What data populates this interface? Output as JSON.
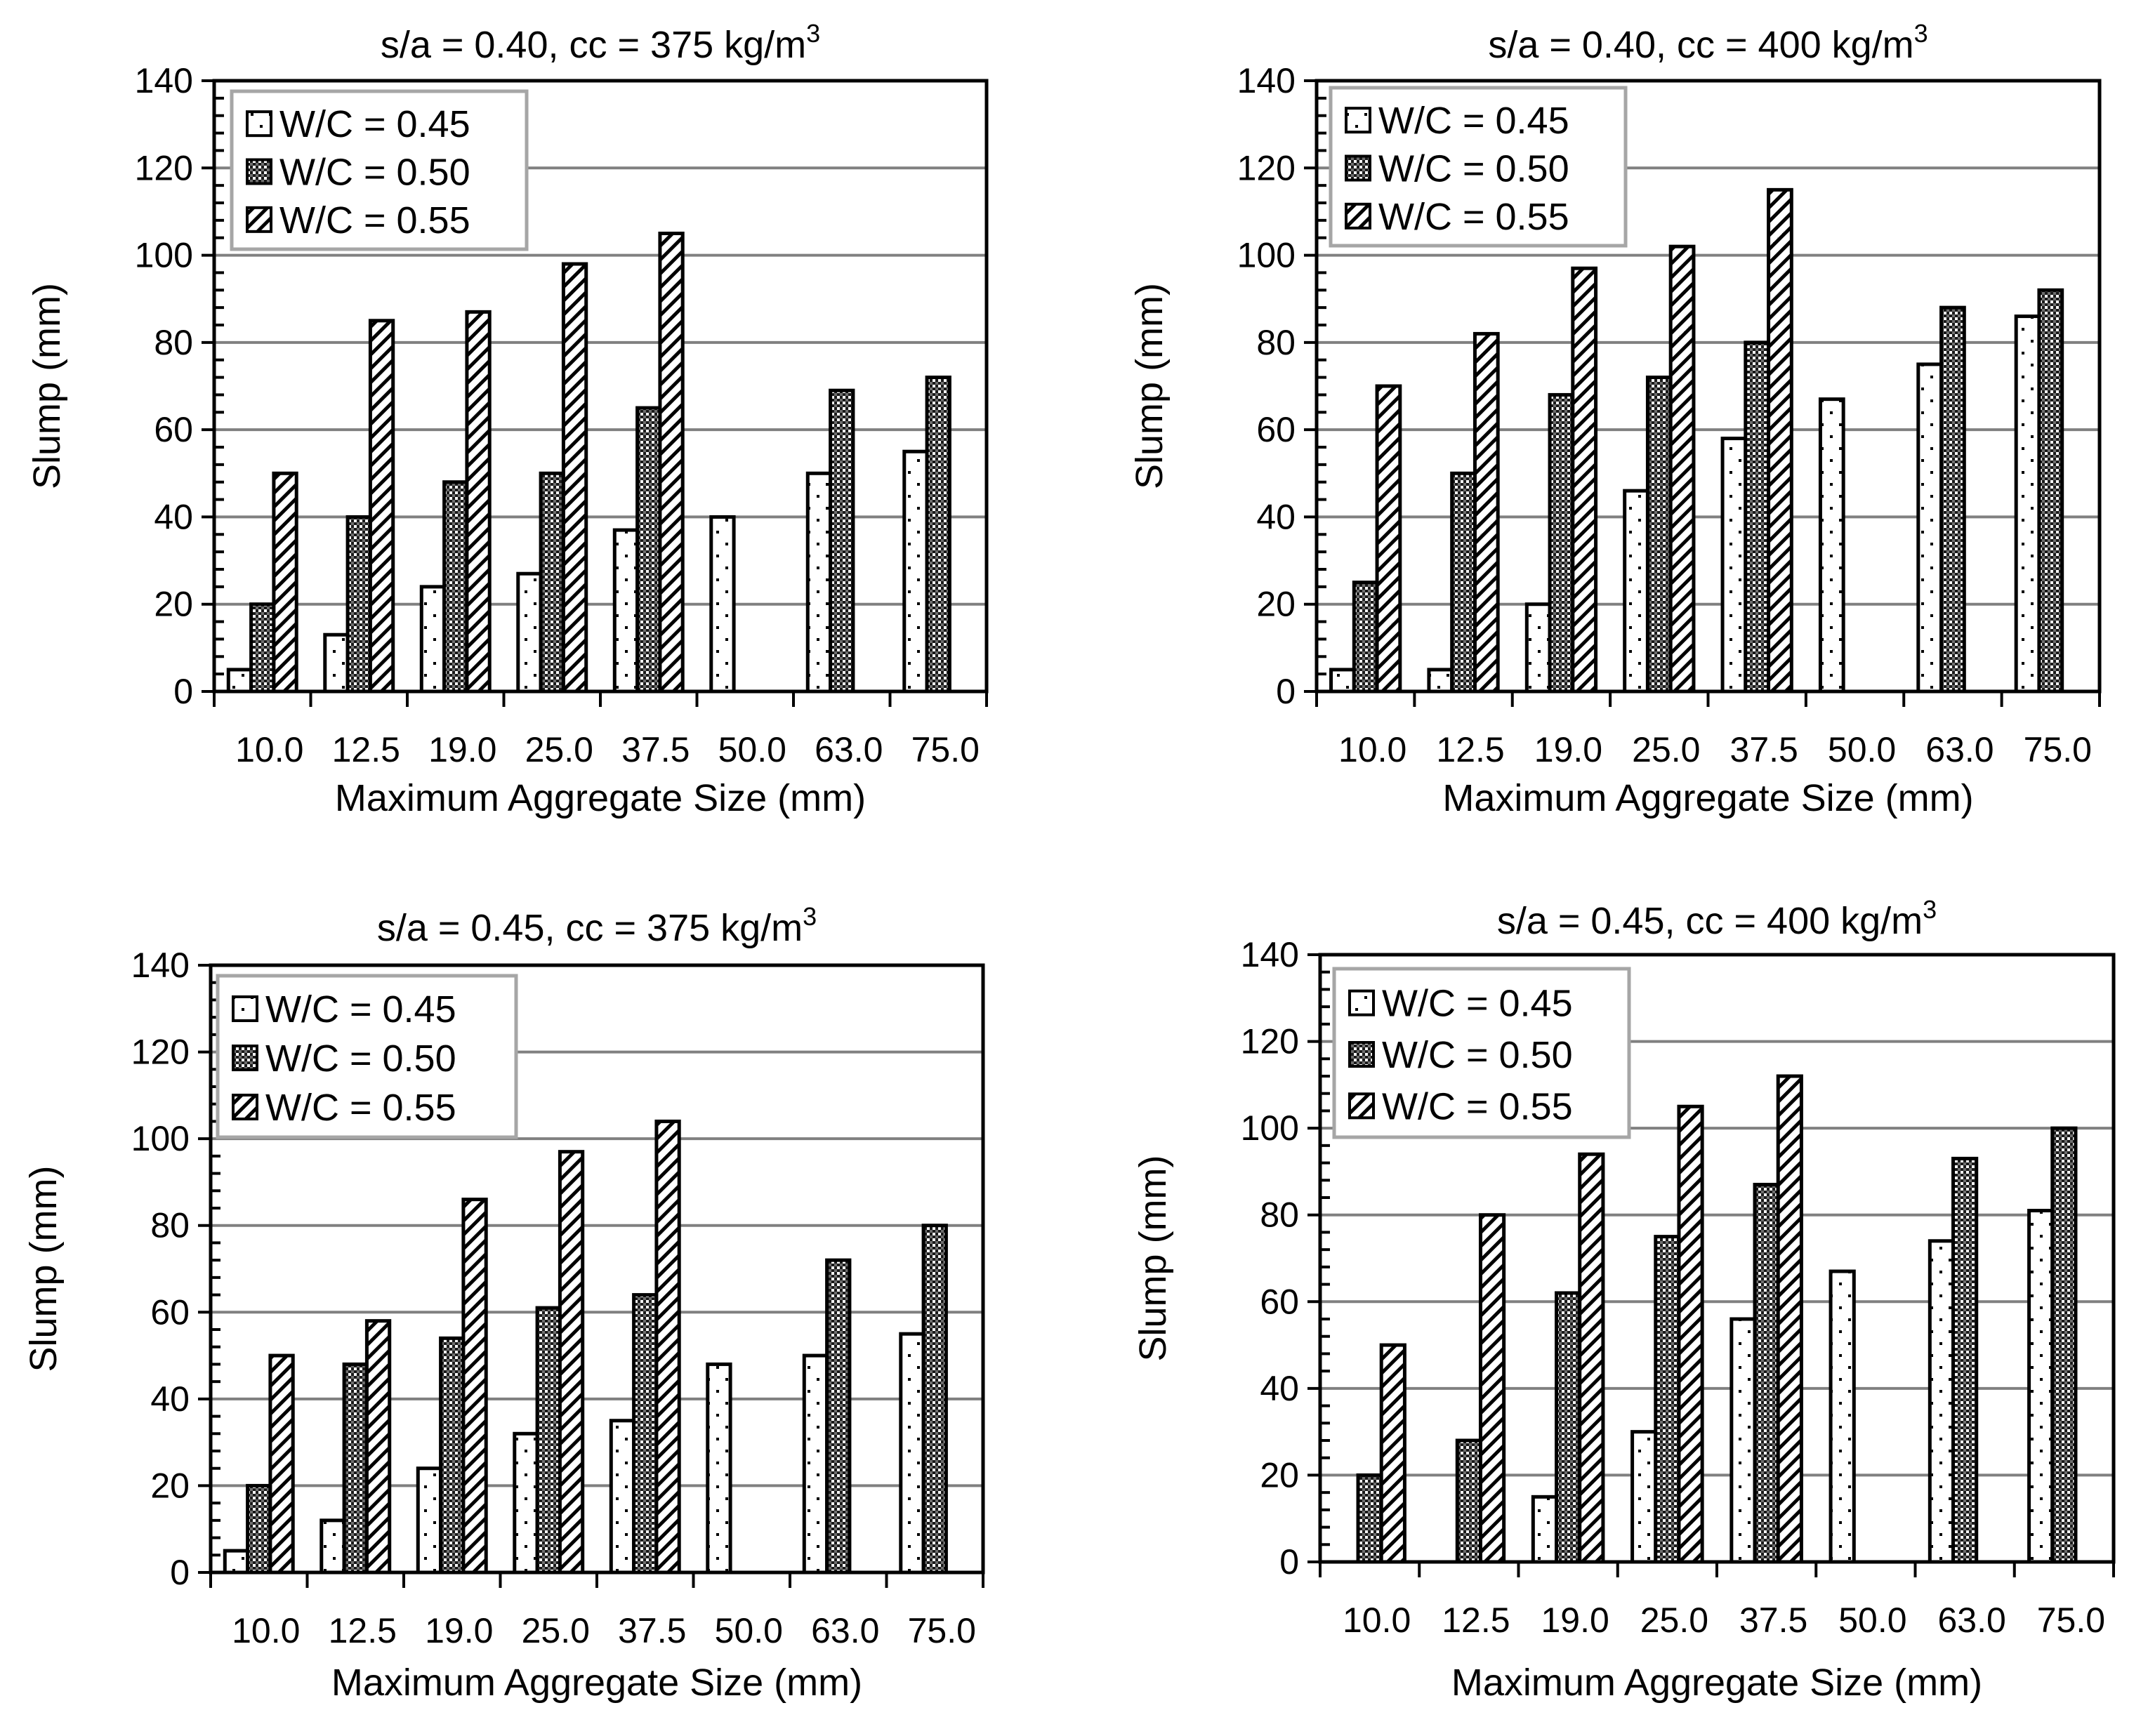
{
  "colors": {
    "background": "#ffffff",
    "grid": "#808080",
    "axis": "#000000",
    "bar_outline": "#000000",
    "legend_border": "#a6a6a6"
  },
  "series_styles": [
    {
      "pattern": "sparse-dots",
      "fill": "#ffffff"
    },
    {
      "pattern": "dense-checker",
      "fill": "#444444"
    },
    {
      "pattern": "diagonal-hatch",
      "fill": "#ffffff"
    }
  ],
  "chart_data": [
    {
      "type": "bar",
      "title_main": "s/a = 0.40, cc = 375 kg/m",
      "title_sup": "3",
      "xlabel": "Maximum Aggregate Size (mm)",
      "ylabel": "Slump (mm)",
      "ylim": [
        0,
        140
      ],
      "yticks": [
        "0",
        "20",
        "40",
        "60",
        "80",
        "100",
        "120",
        "140"
      ],
      "categories": [
        "10.0",
        "12.5",
        "19.0",
        "25.0",
        "37.5",
        "50.0",
        "63.0",
        "75.0"
      ],
      "grid": true,
      "legend_position": "top-left",
      "series": [
        {
          "name": "W/C = 0.45",
          "values": [
            5,
            13,
            24,
            27,
            37,
            40,
            50,
            55
          ]
        },
        {
          "name": "W/C = 0.50",
          "values": [
            20,
            40,
            48,
            50,
            65,
            null,
            69,
            72
          ]
        },
        {
          "name": "W/C = 0.55",
          "values": [
            50,
            85,
            87,
            98,
            105,
            null,
            null,
            null
          ]
        }
      ]
    },
    {
      "type": "bar",
      "title_main": "s/a = 0.40, cc = 400 kg/m",
      "title_sup": "3",
      "xlabel": "Maximum Aggregate Size (mm)",
      "ylabel": "Slump (mm)",
      "ylim": [
        0,
        140
      ],
      "yticks": [
        "0",
        "20",
        "40",
        "60",
        "80",
        "100",
        "120",
        "140"
      ],
      "categories": [
        "10.0",
        "12.5",
        "19.0",
        "25.0",
        "37.5",
        "50.0",
        "63.0",
        "75.0"
      ],
      "grid": true,
      "legend_position": "top-left",
      "series": [
        {
          "name": "W/C = 0.45",
          "values": [
            5,
            5,
            20,
            46,
            58,
            67,
            75,
            86
          ]
        },
        {
          "name": "W/C = 0.50",
          "values": [
            25,
            50,
            68,
            72,
            80,
            null,
            88,
            92
          ]
        },
        {
          "name": "W/C = 0.55",
          "values": [
            70,
            82,
            97,
            102,
            115,
            null,
            null,
            null
          ]
        }
      ]
    },
    {
      "type": "bar",
      "title_main": "s/a = 0.45, cc = 375 kg/m",
      "title_sup": "3",
      "xlabel": "Maximum Aggregate Size (mm)",
      "ylabel": "Slump (mm)",
      "ylim": [
        0,
        140
      ],
      "yticks": [
        "0",
        "20",
        "40",
        "60",
        "80",
        "100",
        "120",
        "140"
      ],
      "categories": [
        "10.0",
        "12.5",
        "19.0",
        "25.0",
        "37.5",
        "50.0",
        "63.0",
        "75.0"
      ],
      "grid": true,
      "legend_position": "top-left",
      "series": [
        {
          "name": "W/C = 0.45",
          "values": [
            5,
            12,
            24,
            32,
            35,
            48,
            50,
            55
          ]
        },
        {
          "name": "W/C = 0.50",
          "values": [
            20,
            48,
            54,
            61,
            64,
            null,
            72,
            80
          ]
        },
        {
          "name": "W/C = 0.55",
          "values": [
            50,
            58,
            86,
            97,
            104,
            null,
            null,
            null
          ]
        }
      ]
    },
    {
      "type": "bar",
      "title_main": "s/a = 0.45, cc = 400 kg/m",
      "title_sup": "3",
      "xlabel": "Maximum Aggregate Size (mm)",
      "ylabel": "Slump (mm)",
      "ylim": [
        0,
        140
      ],
      "yticks": [
        "0",
        "20",
        "40",
        "60",
        "80",
        "100",
        "120",
        "140"
      ],
      "categories": [
        "10.0",
        "12.5",
        "19.0",
        "25.0",
        "37.5",
        "50.0",
        "63.0",
        "75.0"
      ],
      "grid": true,
      "legend_position": "top-left",
      "series": [
        {
          "name": "W/C = 0.45",
          "values": [
            null,
            null,
            15,
            30,
            56,
            67,
            74,
            81
          ]
        },
        {
          "name": "W/C = 0.50",
          "values": [
            20,
            28,
            62,
            75,
            87,
            null,
            93,
            100
          ]
        },
        {
          "name": "W/C = 0.55",
          "values": [
            50,
            80,
            94,
            105,
            112,
            null,
            null,
            null
          ]
        }
      ]
    }
  ]
}
